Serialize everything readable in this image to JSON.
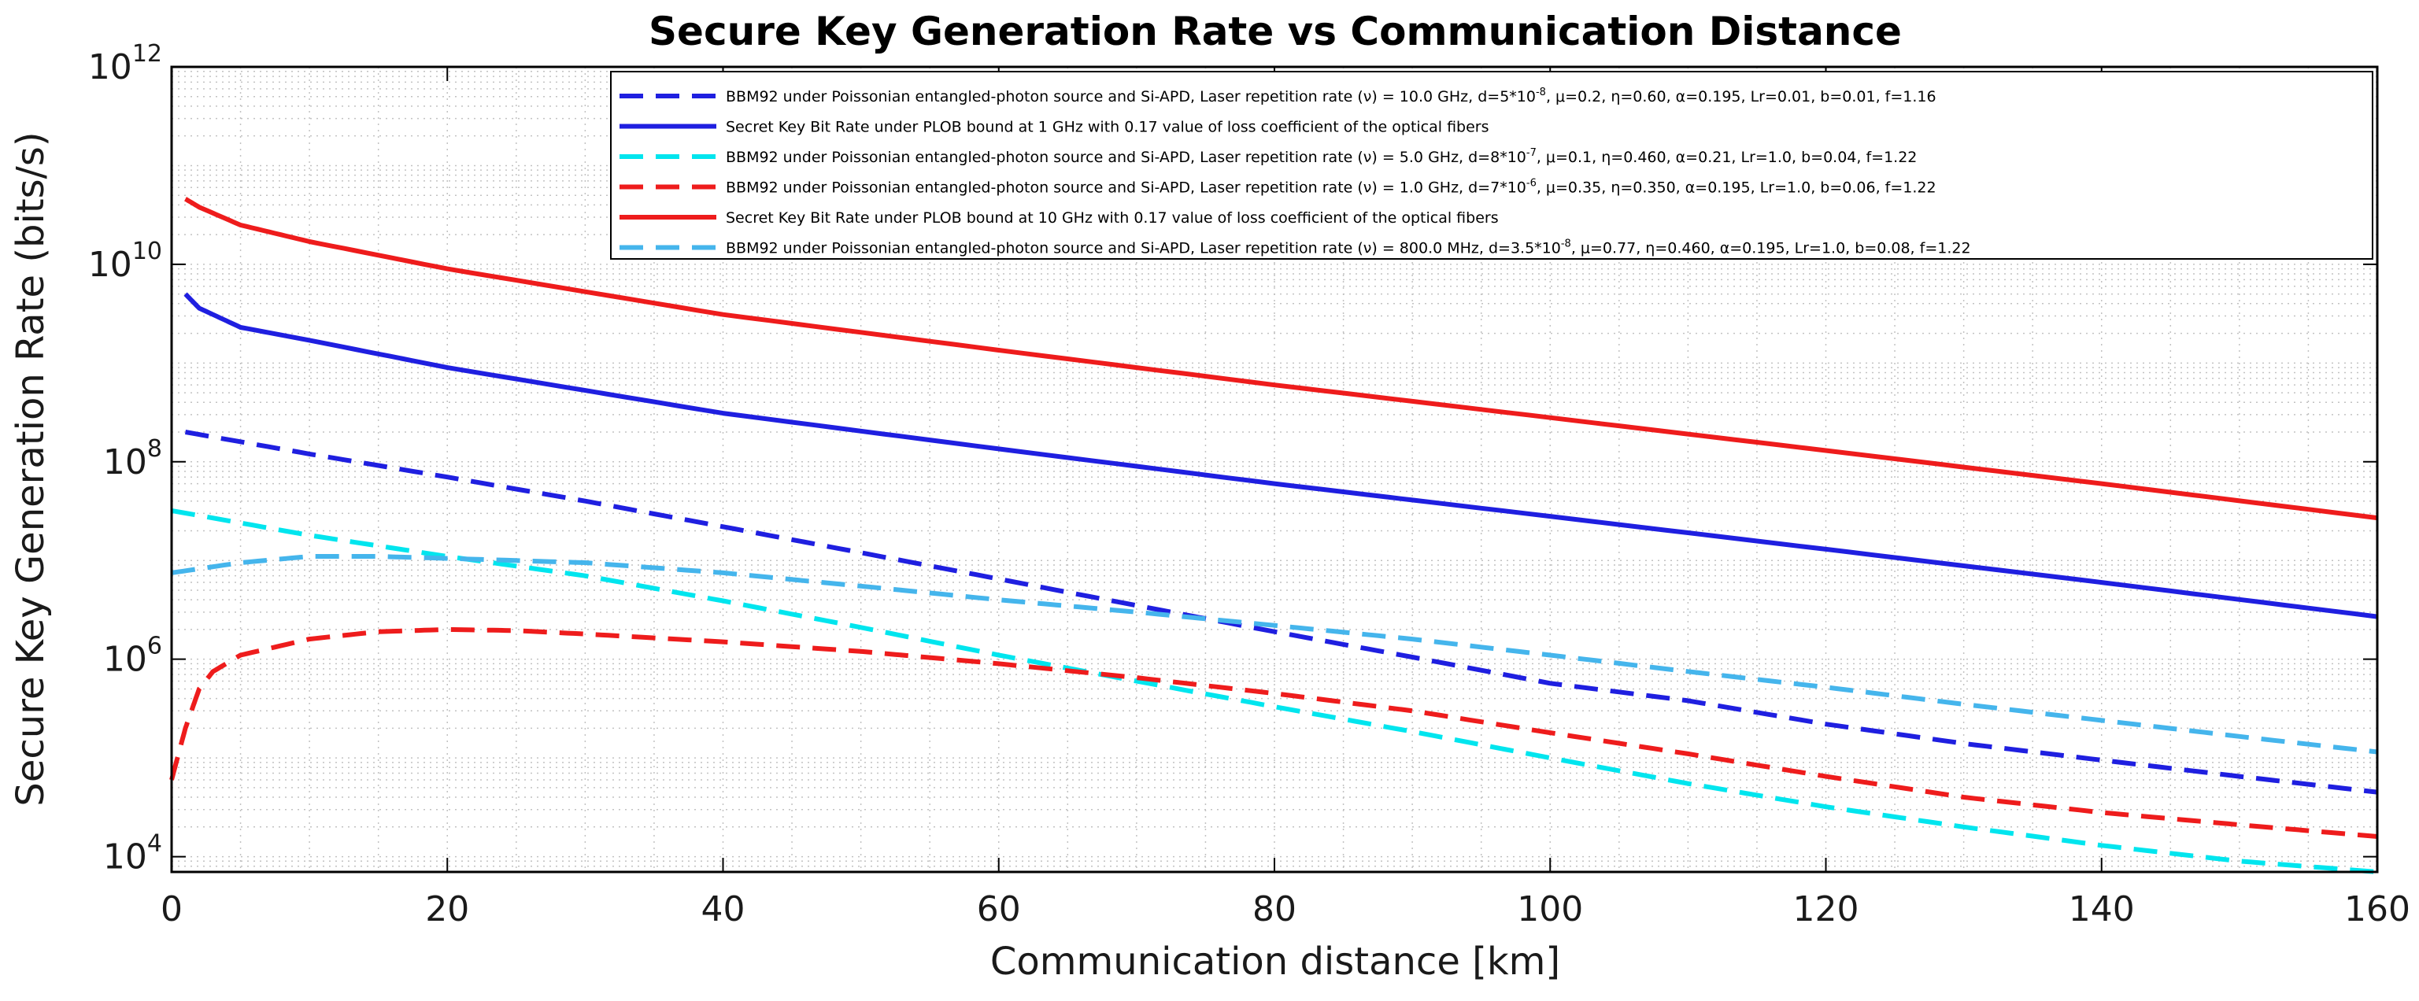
{
  "chart_data": {
    "type": "line",
    "title": "Secure Key Generation Rate vs Communication Distance",
    "xlabel": "Communication distance [km]",
    "ylabel": "Secure Key Generation Rate (bits/s)",
    "xlim": [
      0,
      160
    ],
    "ylim": [
      7000,
      1000000000000
    ],
    "yscale": "log",
    "grid": true,
    "legend_position": "top-right",
    "x_ticks": [
      {
        "value": 0,
        "label": "0"
      },
      {
        "value": 20,
        "label": "20"
      },
      {
        "value": 40,
        "label": "40"
      },
      {
        "value": 60,
        "label": "60"
      },
      {
        "value": 80,
        "label": "80"
      },
      {
        "value": 100,
        "label": "100"
      },
      {
        "value": 120,
        "label": "120"
      },
      {
        "value": 140,
        "label": "140"
      },
      {
        "value": 160,
        "label": "160"
      }
    ],
    "y_ticks": [
      {
        "value": 10000,
        "base": "10",
        "exp": "4"
      },
      {
        "value": 1000000,
        "base": "10",
        "exp": "6"
      },
      {
        "value": 100000000,
        "base": "10",
        "exp": "8"
      },
      {
        "value": 10000000000,
        "base": "10",
        "exp": "10"
      },
      {
        "value": 1000000000000,
        "base": "10",
        "exp": "12"
      }
    ],
    "series": [
      {
        "name": "BBM92 under Poissonian entangled-photon source and Si-APD, Laser repetition rate (ν) = 10.0 GHz, d=5*10^-8, μ=0.2, η=0.60, α=0.195, Lr=0.01, b=0.01, f=1.16",
        "color": "#1f1fe0",
        "dashed": true,
        "x": [
          1,
          10,
          20,
          30,
          40,
          50,
          60,
          70,
          80,
          90,
          100,
          110,
          120,
          130,
          140,
          150,
          160
        ],
        "y": [
          200000000,
          120000000,
          70000000,
          40000000,
          22000000,
          12000000,
          6500000,
          3500000,
          1900000,
          1050000,
          570000,
          380000,
          220000,
          140000,
          95000,
          65000,
          45000
        ]
      },
      {
        "name": "Secret Key Bit Rate under PLOB bound at 1 GHz with 0.17 value of loss coefficient of the optical fibers",
        "color": "#1f1fe0",
        "dashed": false,
        "x": [
          1,
          2,
          5,
          10,
          20,
          40,
          60,
          80,
          100,
          120,
          140,
          160
        ],
        "y": [
          5000000000,
          3600000000,
          2300000000,
          1700000000,
          900000000,
          310000000,
          135000000,
          60000000,
          28000000,
          13000000,
          6000000,
          2700000
        ]
      },
      {
        "name": "BBM92 under Poissonian entangled-photon source and Si-APD, Laser repetition rate (ν) = 5.0 GHz, d=8*10^-7, μ=0.1, η=0.460, α=0.21, Lr=1.0, b=0.04, f=1.22",
        "color": "#00e5ee",
        "dashed": true,
        "x": [
          0,
          10,
          20,
          30,
          40,
          50,
          60,
          70,
          80,
          90,
          100,
          110,
          120,
          130,
          140,
          150,
          160
        ],
        "y": [
          32000000,
          18000000,
          11000000,
          7000000,
          3900000,
          2100000,
          1100000,
          600000,
          330000,
          185000,
          100000,
          55000,
          32000,
          20000,
          13000,
          9000,
          7000
        ]
      },
      {
        "name": "BBM92 under Poissonian entangled-photon source and Si-APD, Laser repetition rate (ν) = 1.0 GHz, d=7*10^-6, μ=0.35, η=0.350, α=0.195, Lr=1.0, b=0.06, f=1.22",
        "color": "#ee1c1c",
        "dashed": true,
        "x": [
          0,
          1,
          2,
          3,
          5,
          10,
          15,
          20,
          25,
          30,
          40,
          50,
          60,
          70,
          80,
          90,
          100,
          110,
          120,
          130,
          140,
          150,
          160
        ],
        "y": [
          60000,
          200000,
          500000,
          750000,
          1100000,
          1600000,
          1900000,
          2000000,
          1950000,
          1800000,
          1500000,
          1200000,
          900000,
          650000,
          450000,
          300000,
          180000,
          110000,
          65000,
          40000,
          28000,
          21000,
          16000
        ]
      },
      {
        "name": "Secret Key Bit Rate under PLOB bound at 10 GHz with 0.17 value of loss coefficient of the optical fibers",
        "color": "#ee1c1c",
        "dashed": false,
        "x": [
          1,
          2,
          5,
          10,
          20,
          40,
          60,
          80,
          100,
          120,
          140,
          160
        ],
        "y": [
          46000000000,
          38000000000,
          25000000000,
          17000000000,
          9000000000,
          3100000000,
          1350000000,
          600000000,
          280000000,
          130000000,
          60000000,
          27000000
        ]
      },
      {
        "name": "BBM92 under Poissonian entangled-photon source and Si-APD, Laser repetition rate (ν) = 800.0 MHz, d=3.5*10^-8, μ=0.77, η=0.460, α=0.195, Lr=1.0, b=0.08, f=1.22",
        "color": "#45b5ec",
        "dashed": true,
        "x": [
          0,
          5,
          10,
          15,
          20,
          30,
          40,
          50,
          60,
          70,
          80,
          90,
          100,
          110,
          120,
          130,
          140,
          150,
          160
        ],
        "y": [
          7500000,
          9500000,
          11000000,
          11000000,
          10500000,
          9500000,
          7500000,
          5500000,
          4000000,
          3000000,
          2200000,
          1600000,
          1100000,
          750000,
          520000,
          350000,
          240000,
          165000,
          115000
        ]
      }
    ],
    "legend_entries": [
      {
        "pre": "BBM92 under Poissonian entangled-photon source and Si-APD, Laser repetition rate (ν) = 10.0 GHz,  d=5*10",
        "sup": "-8",
        "post": ",  μ=0.2,  η=0.60,  α=0.195, Lr=0.01, b=0.01, f=1.16"
      },
      {
        "pre": "Secret Key Bit Rate under PLOB bound at 1 GHz with 0.17 value of loss coefficient of the optical fibers",
        "sup": "",
        "post": ""
      },
      {
        "pre": "BBM92 under Poissonian entangled-photon source and Si-APD, Laser repetition rate (ν) = 5.0 GHz,  d=8*10",
        "sup": "-7",
        "post": ",  μ=0.1,  η=0.460,  α=0.21,  Lr=1.0, b=0.04,  f=1.22"
      },
      {
        "pre": "BBM92 under Poissonian entangled-photon source and Si-APD, Laser repetition rate (ν) = 1.0 GHz, d=7*10",
        "sup": "-6",
        "post": ",  μ=0.35,  η=0.350,  α=0.195,  Lr=1.0, b=0.06, f=1.22"
      },
      {
        "pre": "Secret Key Bit Rate under PLOB bound at 10 GHz with 0.17 value of loss coefficient of the optical fibers",
        "sup": "",
        "post": ""
      },
      {
        "pre": "BBM92 under Poissonian entangled-photon source and Si-APD, Laser repetition rate (ν) = 800.0 MHz,  d=3.5*10",
        "sup": "-8",
        "post": ",  μ=0.77,  η=0.460,  α=0.195,  Lr=1.0, b=0.08,  f=1.22"
      }
    ]
  }
}
